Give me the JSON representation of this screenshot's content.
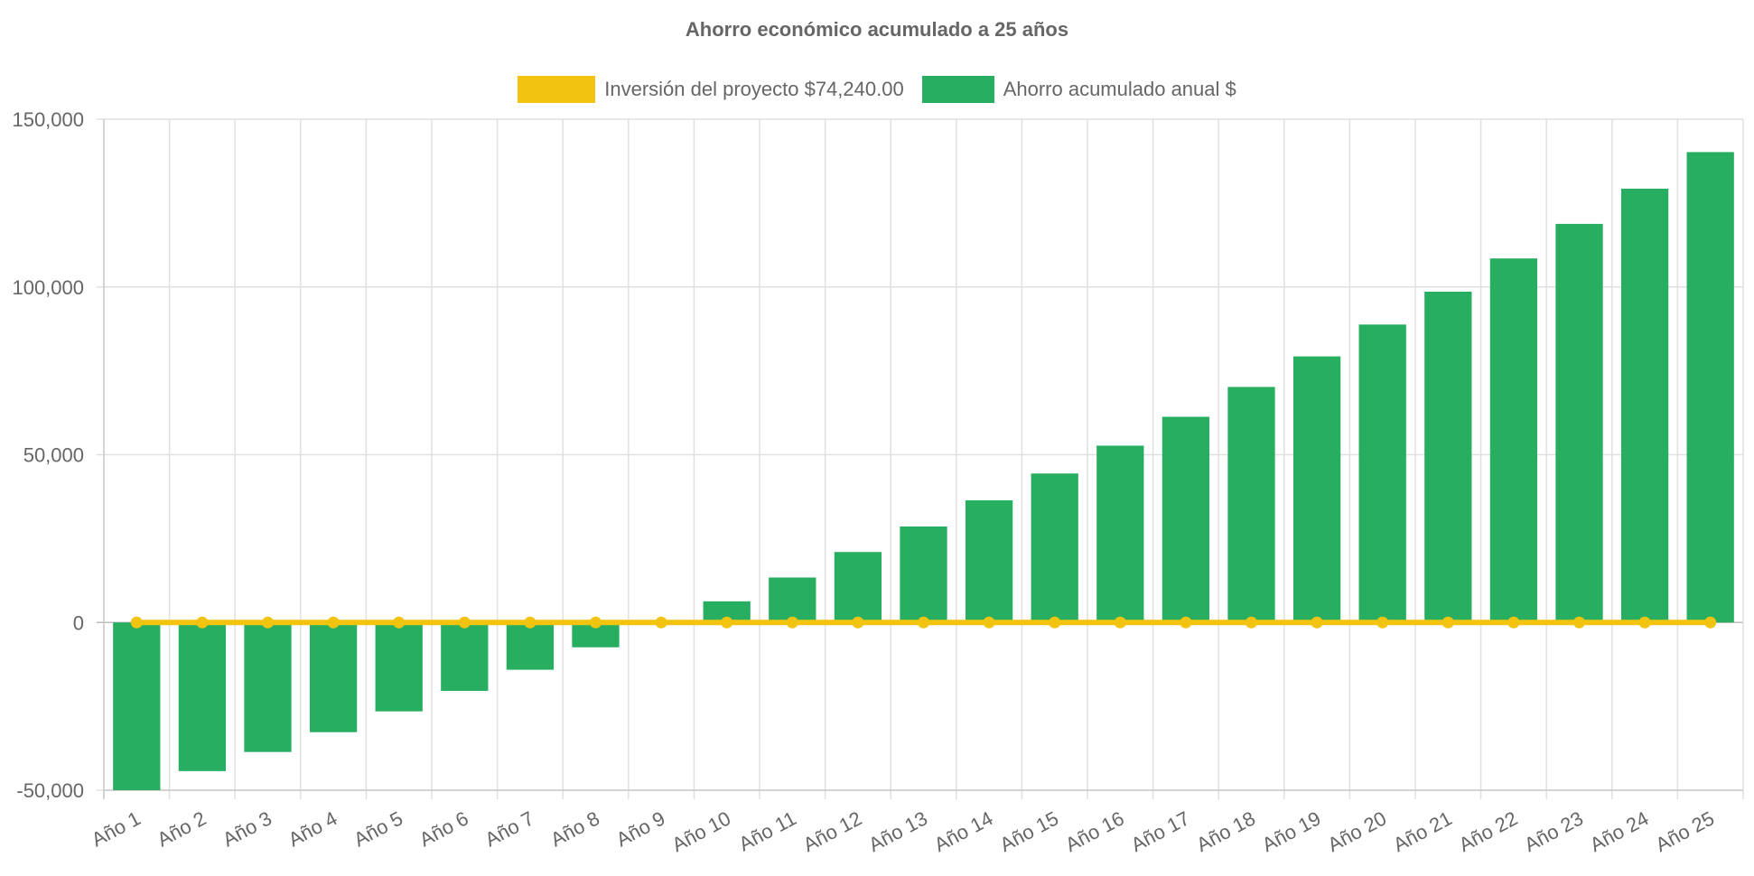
{
  "chart_data": {
    "type": "bar",
    "title": "Ahorro económico acumulado a 25 años",
    "categories": [
      "Año 1",
      "Año 2",
      "Año 3",
      "Año 4",
      "Año 5",
      "Año 6",
      "Año 7",
      "Año 8",
      "Año 9",
      "Año 10",
      "Año 11",
      "Año 12",
      "Año 13",
      "Año 14",
      "Año 15",
      "Año 16",
      "Año 17",
      "Año 18",
      "Año 19",
      "Año 20",
      "Año 21",
      "Año 22",
      "Año 23",
      "Año 24",
      "Año 25"
    ],
    "series": [
      {
        "name": "Inversión del proyecto $74,240.00",
        "type": "line",
        "color": "#f2c40f",
        "values": [
          0,
          0,
          0,
          0,
          0,
          0,
          0,
          0,
          0,
          0,
          0,
          0,
          0,
          0,
          0,
          0,
          0,
          0,
          0,
          0,
          0,
          0,
          0,
          0,
          0
        ]
      },
      {
        "name": "Ahorro acumulado anual $",
        "type": "bar",
        "color": "#27ae60",
        "values": [
          -50000,
          -44300,
          -38600,
          -32700,
          -26500,
          -20400,
          -14100,
          -7400,
          0,
          6300,
          13400,
          21000,
          28600,
          36400,
          44400,
          52700,
          61300,
          70200,
          79300,
          88800,
          98600,
          108500,
          118800,
          129300,
          140200
        ]
      }
    ],
    "ylim": [
      -50000,
      150000
    ],
    "yticks": [
      "150,000",
      "100,000",
      "50,000",
      "0",
      "-50,000"
    ],
    "ytick_values": [
      150000,
      100000,
      50000,
      0,
      -50000
    ],
    "grid": true,
    "legend": "top-center",
    "xlabel": "",
    "ylabel": ""
  }
}
